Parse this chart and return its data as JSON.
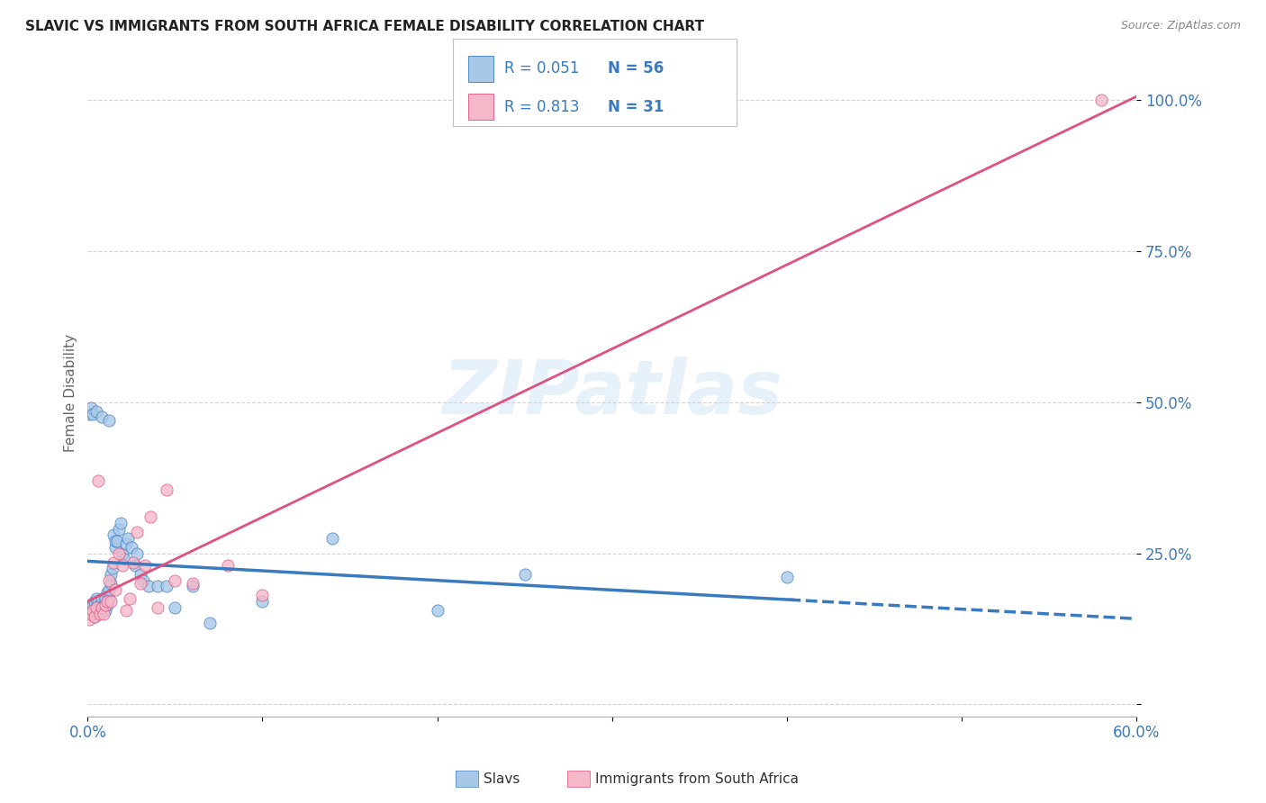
{
  "title": "SLAVIC VS IMMIGRANTS FROM SOUTH AFRICA FEMALE DISABILITY CORRELATION CHART",
  "source": "Source: ZipAtlas.com",
  "ylabel": "Female Disability",
  "x_min": 0.0,
  "x_max": 0.6,
  "y_min": -0.02,
  "y_max": 1.05,
  "slavs_color": "#a8c8e8",
  "sa_color": "#f4b8c8",
  "slavs_line_color": "#3a7abf",
  "sa_line_color": "#e05080",
  "watermark": "ZIPatlas",
  "slavs_x": [
    0.001,
    0.002,
    0.003,
    0.003,
    0.004,
    0.004,
    0.005,
    0.005,
    0.006,
    0.006,
    0.007,
    0.007,
    0.008,
    0.008,
    0.009,
    0.01,
    0.01,
    0.011,
    0.011,
    0.012,
    0.012,
    0.013,
    0.013,
    0.014,
    0.015,
    0.016,
    0.016,
    0.017,
    0.018,
    0.019,
    0.02,
    0.021,
    0.022,
    0.023,
    0.025,
    0.027,
    0.028,
    0.03,
    0.032,
    0.035,
    0.04,
    0.045,
    0.05,
    0.06,
    0.07,
    0.1,
    0.14,
    0.2,
    0.25,
    0.4,
    0.001,
    0.002,
    0.003,
    0.005,
    0.008,
    0.012
  ],
  "slavs_y": [
    0.155,
    0.16,
    0.15,
    0.165,
    0.145,
    0.17,
    0.16,
    0.175,
    0.155,
    0.17,
    0.155,
    0.165,
    0.16,
    0.175,
    0.165,
    0.155,
    0.175,
    0.165,
    0.185,
    0.175,
    0.19,
    0.2,
    0.215,
    0.225,
    0.28,
    0.26,
    0.27,
    0.27,
    0.29,
    0.3,
    0.25,
    0.24,
    0.265,
    0.275,
    0.26,
    0.23,
    0.25,
    0.215,
    0.205,
    0.195,
    0.195,
    0.195,
    0.16,
    0.195,
    0.135,
    0.17,
    0.275,
    0.155,
    0.215,
    0.21,
    0.48,
    0.49,
    0.48,
    0.485,
    0.475,
    0.47
  ],
  "sa_x": [
    0.001,
    0.002,
    0.003,
    0.004,
    0.005,
    0.006,
    0.007,
    0.008,
    0.009,
    0.01,
    0.011,
    0.012,
    0.013,
    0.015,
    0.016,
    0.018,
    0.02,
    0.022,
    0.024,
    0.026,
    0.028,
    0.03,
    0.033,
    0.036,
    0.04,
    0.045,
    0.05,
    0.06,
    0.08,
    0.1,
    0.58
  ],
  "sa_y": [
    0.14,
    0.15,
    0.155,
    0.145,
    0.16,
    0.37,
    0.15,
    0.16,
    0.15,
    0.165,
    0.17,
    0.205,
    0.17,
    0.235,
    0.19,
    0.25,
    0.23,
    0.155,
    0.175,
    0.235,
    0.285,
    0.2,
    0.23,
    0.31,
    0.16,
    0.355,
    0.205,
    0.2,
    0.23,
    0.18,
    1.0
  ]
}
